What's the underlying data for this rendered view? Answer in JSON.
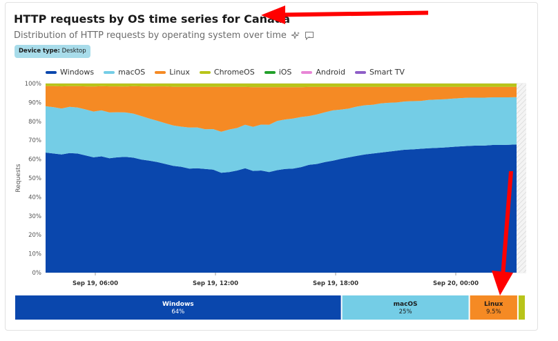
{
  "header": {
    "title": "HTTP requests by OS time series for Canada",
    "subtitle": "Distribution of HTTP requests by operating system over time",
    "icons": [
      "sparkle-icon",
      "quote-icon"
    ]
  },
  "filter_badge": {
    "key": "Device type:",
    "value": "Desktop"
  },
  "colors": {
    "Windows": "#0a47ad",
    "macOS": "#74cde6",
    "Linux": "#f58a24",
    "ChromeOS": "#b8c41a",
    "iOS": "#22a02a",
    "Android": "#e886d6",
    "Smart TV": "#8e5ec7",
    "annotation": "#ff0000"
  },
  "chart_data": {
    "type": "area",
    "stacked": true,
    "ylabel": "Requests",
    "ylim": [
      0,
      100
    ],
    "y_ticks": [
      "0%",
      "10%",
      "20%",
      "30%",
      "40%",
      "50%",
      "60%",
      "70%",
      "80%",
      "90%",
      "100%"
    ],
    "x_ticks": [
      "Sep 19, 06:00",
      "Sep 19, 12:00",
      "Sep 19, 18:00",
      "Sep 20, 00:00"
    ],
    "legend": [
      "Windows",
      "macOS",
      "Linux",
      "ChromeOS",
      "iOS",
      "Android",
      "Smart TV"
    ],
    "series": [
      {
        "name": "Windows",
        "values": [
          63.5,
          63,
          62.5,
          63.2,
          63,
          62,
          61,
          61.5,
          60.5,
          61,
          61.2,
          60.8,
          59.8,
          59.2,
          58.5,
          57.5,
          56.5,
          56,
          55,
          55.2,
          54.8,
          54.5,
          52.8,
          53.2,
          54,
          55.2,
          53.8,
          54,
          53.2,
          54.2,
          54.8,
          55,
          55.8,
          57,
          57.5,
          58.5,
          59.2,
          60.2,
          61,
          61.8,
          62.5,
          63,
          63.5,
          64,
          64.5,
          65,
          65.2,
          65.5,
          65.8,
          66,
          66.2,
          66.5,
          66.8,
          67,
          67.2,
          67.2,
          67.5,
          67.5,
          67.6,
          67.8
        ]
      },
      {
        "name": "macOS",
        "values": [
          24.5,
          24.5,
          24.3,
          24.5,
          24.3,
          24.3,
          24.2,
          24.3,
          24.2,
          23.8,
          23.5,
          23.3,
          23,
          22.3,
          21.8,
          21.5,
          21.3,
          21.2,
          21.7,
          21.6,
          21,
          21.4,
          21.7,
          22.5,
          22.5,
          23,
          23.3,
          24.3,
          25,
          26,
          26.2,
          26.5,
          26.5,
          25.8,
          26.2,
          26.3,
          26.6,
          26,
          25.8,
          26,
          26,
          25.8,
          26,
          25.8,
          25.5,
          25.5,
          25.5,
          25.3,
          25.5,
          25.5,
          25.5,
          25.5,
          25.5,
          25.5,
          25.3,
          25.3,
          25.2,
          25.2,
          25.1,
          25
        ]
      },
      {
        "name": "Linux",
        "values": [
          10.7,
          11.2,
          11.7,
          10.9,
          11.3,
          12.2,
          13.2,
          12.8,
          13.8,
          13.7,
          13.7,
          14.5,
          15.7,
          16.9,
          18.2,
          19.5,
          20.5,
          21,
          21.5,
          21.4,
          22.4,
          22.3,
          23.8,
          22.5,
          21.7,
          20,
          21,
          19.8,
          19.9,
          17.9,
          17.1,
          16.6,
          15.8,
          15.4,
          14.5,
          13.4,
          12.4,
          12,
          11.4,
          10.4,
          9.7,
          9.4,
          8.7,
          8.4,
          8.2,
          7.7,
          7.5,
          7.4,
          6.9,
          6.7,
          6.5,
          6.2,
          5.9,
          5.7,
          5.7,
          5.7,
          5.5,
          5.5,
          5.5,
          5.4
        ]
      },
      {
        "name": "ChromeOS",
        "values": [
          1.3,
          1.3,
          1.5,
          1.4,
          1.4,
          1.5,
          1.6,
          1.4,
          1.5,
          1.5,
          1.6,
          1.4,
          1.5,
          1.6,
          1.5,
          1.5,
          1.7,
          1.8,
          1.8,
          1.8,
          1.8,
          1.8,
          1.7,
          1.8,
          1.8,
          1.8,
          1.9,
          1.9,
          1.9,
          1.9,
          1.9,
          1.9,
          1.9,
          1.8,
          1.8,
          1.8,
          1.8,
          1.8,
          1.8,
          1.8,
          1.8,
          1.8,
          1.8,
          1.8,
          1.8,
          1.8,
          1.8,
          1.8,
          1.8,
          1.8,
          1.8,
          1.8,
          1.8,
          1.8,
          1.8,
          1.8,
          1.8,
          1.8,
          1.8,
          1.8
        ]
      }
    ],
    "summary_bar": [
      {
        "name": "Windows",
        "label": "Windows",
        "value": 64,
        "pct": "64%"
      },
      {
        "name": "macOS",
        "label": "macOS",
        "value": 25,
        "pct": "25%"
      },
      {
        "name": "Linux",
        "label": "Linux",
        "value": 9.5,
        "pct": "9.5%"
      },
      {
        "name": "ChromeOS",
        "label": "",
        "value": 1.5,
        "pct": ""
      }
    ]
  }
}
